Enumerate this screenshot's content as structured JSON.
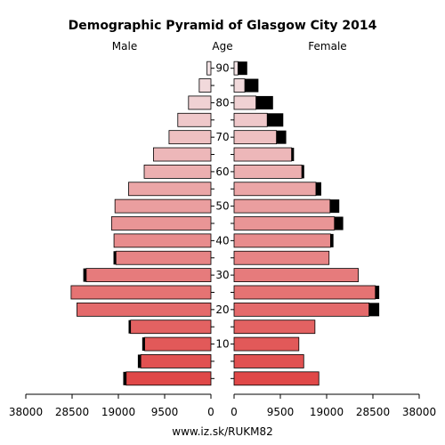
{
  "chart_data": {
    "type": "bar",
    "title": "Demographic Pyramid of Glasgow City 2014",
    "left_label": "Male",
    "middle_label": "Age",
    "right_label": "Female",
    "source": "www.iz.sk/RUKM82",
    "age_ticks": [
      "10",
      "20",
      "30",
      "40",
      "50",
      "60",
      "70",
      "80",
      "90"
    ],
    "x_ticks_left": [
      "38000",
      "28500",
      "19000",
      "9500",
      "0"
    ],
    "x_ticks_right": [
      "0",
      "9500",
      "19000",
      "28500",
      "38000"
    ],
    "xlim": [
      0,
      38000
    ],
    "age_groups": [
      "0-4",
      "5-9",
      "10-14",
      "15-19",
      "20-24",
      "25-29",
      "30-34",
      "35-39",
      "40-44",
      "45-49",
      "50-54",
      "55-59",
      "60-64",
      "65-69",
      "70-74",
      "75-79",
      "80-84",
      "85-89",
      "90+"
    ],
    "series": [
      {
        "name": "Male",
        "values": [
          17400,
          14400,
          13600,
          16500,
          27500,
          28700,
          25600,
          19500,
          19900,
          20400,
          19700,
          16900,
          13700,
          11800,
          8600,
          6800,
          4600,
          2400,
          800
        ],
        "excess": [
          600,
          600,
          500,
          400,
          0,
          0,
          600,
          500,
          0,
          0,
          0,
          0,
          0,
          0,
          0,
          0,
          0,
          0,
          0
        ]
      },
      {
        "name": "Female",
        "values": [
          17400,
          14300,
          13300,
          16600,
          27700,
          29000,
          25500,
          19500,
          19800,
          20600,
          19700,
          16800,
          13900,
          11800,
          8700,
          6800,
          4500,
          2200,
          800
        ],
        "excess": [
          0,
          0,
          0,
          0,
          2100,
          800,
          0,
          0,
          600,
          1800,
          1900,
          1100,
          500,
          500,
          2000,
          3300,
          3500,
          2800,
          1900
        ]
      }
    ],
    "colors": {
      "young": "#e04848",
      "old": "#f2e2e4",
      "excess": "#000000",
      "outline": "#000000"
    }
  }
}
